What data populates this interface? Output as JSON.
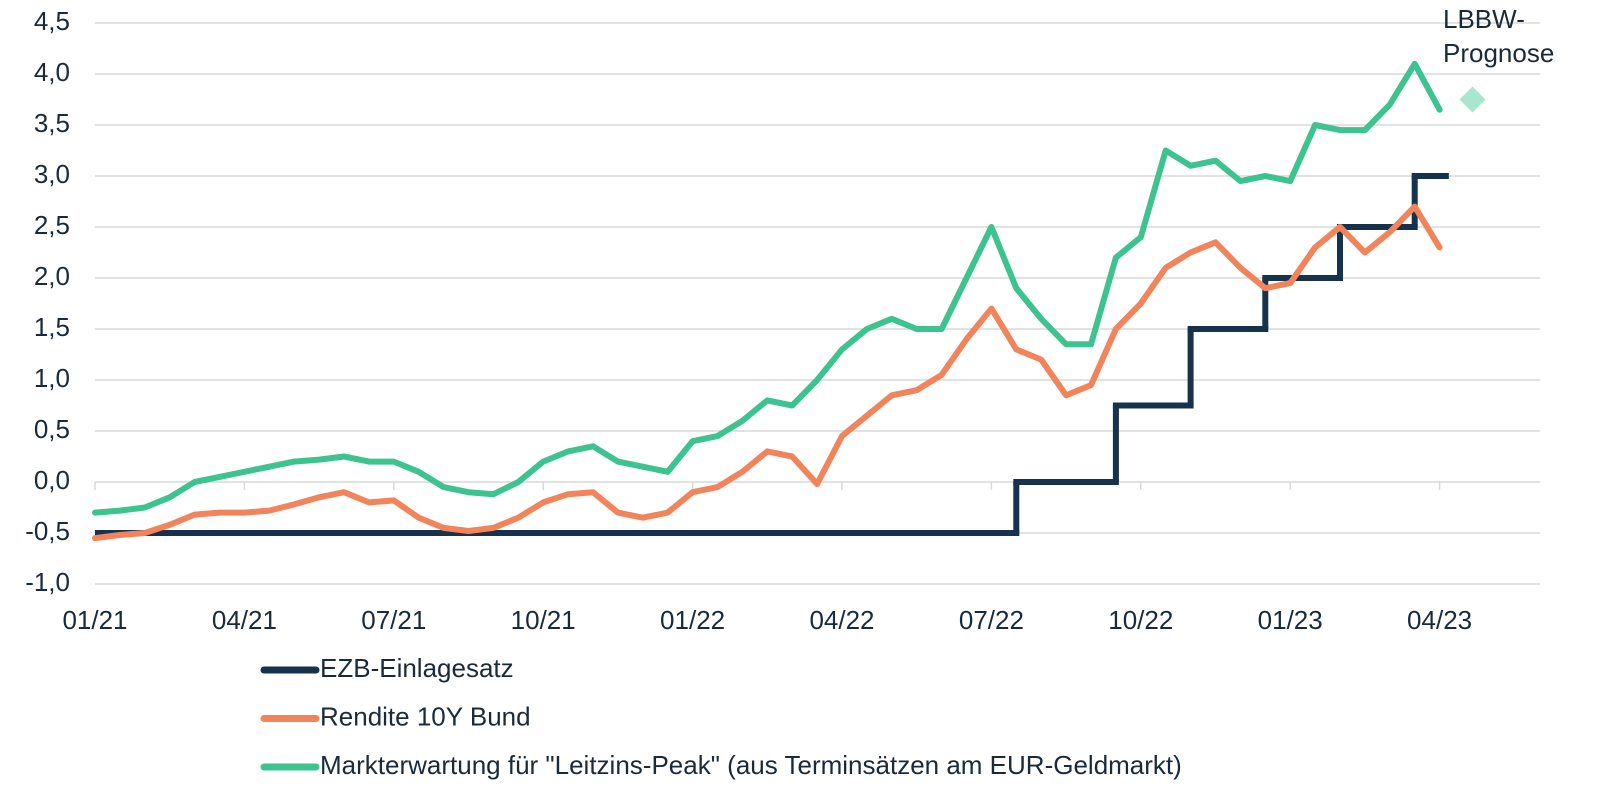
{
  "chart_data": {
    "type": "line",
    "categories": [
      "01/21",
      null,
      null,
      null,
      null,
      null,
      "04/21",
      null,
      null,
      null,
      null,
      null,
      "07/21",
      null,
      null,
      null,
      null,
      null,
      "10/21",
      null,
      null,
      null,
      null,
      null,
      "01/22",
      null,
      null,
      null,
      null,
      null,
      "04/22",
      null,
      null,
      null,
      null,
      null,
      "07/22",
      null,
      null,
      null,
      null,
      null,
      "10/22",
      null,
      null,
      null,
      null,
      null,
      "01/23",
      null,
      null,
      null,
      null,
      null,
      "04/23",
      null
    ],
    "ylim": [
      -1.0,
      4.5
    ],
    "yticks": [
      {
        "value": -1.0,
        "label": "-1,0"
      },
      {
        "value": -0.5,
        "label": "-0,5"
      },
      {
        "value": 0.0,
        "label": "0,0"
      },
      {
        "value": 0.5,
        "label": "0,5"
      },
      {
        "value": 1.0,
        "label": "1,0"
      },
      {
        "value": 1.5,
        "label": "1,5"
      },
      {
        "value": 2.0,
        "label": "2,0"
      },
      {
        "value": 2.5,
        "label": "2,5"
      },
      {
        "value": 3.0,
        "label": "3,0"
      },
      {
        "value": 3.5,
        "label": "3,5"
      },
      {
        "value": 4.0,
        "label": "4,0"
      },
      {
        "value": 4.5,
        "label": "4,5"
      }
    ],
    "grid": true,
    "series": [
      {
        "name": "EZB-Einlagesatz",
        "color": "#17324d",
        "step": true,
        "values": [
          -0.5,
          -0.5,
          -0.5,
          -0.5,
          -0.5,
          -0.5,
          -0.5,
          -0.5,
          -0.5,
          -0.5,
          -0.5,
          -0.5,
          -0.5,
          -0.5,
          -0.5,
          -0.5,
          -0.5,
          -0.5,
          -0.5,
          -0.5,
          -0.5,
          -0.5,
          -0.5,
          -0.5,
          -0.5,
          -0.5,
          -0.5,
          -0.5,
          -0.5,
          -0.5,
          -0.5,
          -0.5,
          -0.5,
          -0.5,
          -0.5,
          -0.5,
          -0.5,
          0,
          0,
          0,
          0,
          0.75,
          0.75,
          0.75,
          1.5,
          1.5,
          1.5,
          2.0,
          2.0,
          2.0,
          2.5,
          2.5,
          2.5,
          3.0,
          3.0,
          null
        ]
      },
      {
        "name": "Rendite 10Y Bund",
        "color": "#f2845c",
        "values": [
          -0.55,
          -0.52,
          -0.5,
          -0.42,
          -0.32,
          -0.3,
          -0.3,
          -0.28,
          -0.22,
          -0.15,
          -0.1,
          -0.2,
          -0.18,
          -0.35,
          -0.45,
          -0.48,
          -0.45,
          -0.35,
          -0.2,
          -0.12,
          -0.1,
          -0.3,
          -0.35,
          -0.3,
          -0.1,
          -0.05,
          0.1,
          0.3,
          0.25,
          -0.02,
          0.45,
          0.65,
          0.85,
          0.9,
          1.05,
          1.4,
          1.7,
          1.3,
          1.2,
          0.85,
          0.95,
          1.5,
          1.75,
          2.1,
          2.25,
          2.35,
          2.1,
          1.9,
          1.95,
          2.3,
          2.5,
          2.25,
          2.45,
          2.7,
          2.3,
          null
        ]
      },
      {
        "name": "Markterwartung für \"Leitzins-Peak\" (aus Terminsätzen am EUR-Geldmarkt)",
        "color": "#3cc390",
        "values": [
          -0.3,
          -0.28,
          -0.25,
          -0.15,
          0.0,
          0.05,
          0.1,
          0.15,
          0.2,
          0.22,
          0.25,
          0.2,
          0.2,
          0.1,
          -0.05,
          -0.1,
          -0.12,
          0.0,
          0.2,
          0.3,
          0.35,
          0.2,
          0.15,
          0.1,
          0.4,
          0.45,
          0.6,
          0.8,
          0.75,
          1.0,
          1.3,
          1.5,
          1.6,
          1.5,
          1.5,
          2.0,
          2.5,
          1.9,
          1.6,
          1.35,
          1.35,
          2.2,
          2.4,
          3.25,
          3.1,
          3.15,
          2.95,
          3.0,
          2.95,
          3.5,
          3.45,
          3.45,
          3.7,
          4.1,
          3.65,
          null
        ]
      }
    ],
    "forecast": {
      "label": [
        "LBBW-",
        "Prognose"
      ],
      "value": 3.75,
      "color": "#a8e6cf"
    }
  }
}
